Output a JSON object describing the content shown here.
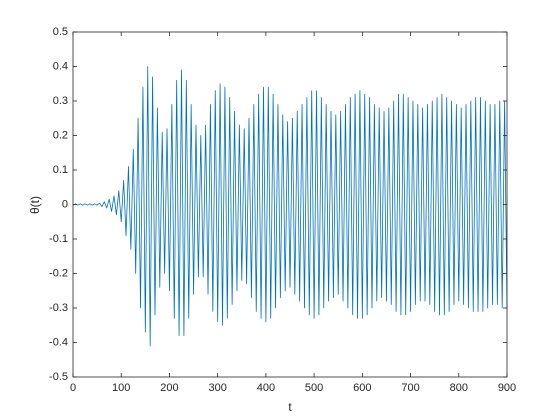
{
  "chart_data": {
    "type": "line",
    "xlabel": "t",
    "ylabel": "θ(t)",
    "color": "#0072bd",
    "xlim": [
      0,
      900
    ],
    "ylim": [
      -0.5,
      0.5
    ],
    "xticks": [
      0,
      100,
      200,
      300,
      400,
      500,
      600,
      700,
      800,
      900
    ],
    "yticks": [
      -0.5,
      -0.4,
      -0.3,
      -0.2,
      -0.1,
      0,
      0.1,
      0.2,
      0.3,
      0.4,
      0.5
    ],
    "box": true,
    "x": [
      0,
      5,
      10,
      15,
      20,
      25,
      30,
      35,
      40,
      45,
      50,
      55,
      60,
      65,
      70,
      75,
      80,
      85,
      90,
      95,
      100,
      105,
      110,
      115,
      120,
      125,
      130,
      135,
      140,
      145,
      150,
      155,
      160,
      165,
      170,
      175,
      180,
      185,
      190,
      195,
      200,
      205,
      210,
      215,
      220,
      225,
      230,
      235,
      240,
      245,
      250,
      255,
      260,
      265,
      270,
      275,
      280,
      285,
      290,
      295,
      300,
      305,
      310,
      315,
      320,
      325,
      330,
      335,
      340,
      345,
      350,
      355,
      360,
      365,
      370,
      375,
      380,
      385,
      390,
      395,
      400,
      405,
      410,
      415,
      420,
      425,
      430,
      435,
      440,
      445,
      450,
      455,
      460,
      465,
      470,
      475,
      480,
      485,
      490,
      495,
      500,
      505,
      510,
      515,
      520,
      525,
      530,
      535,
      540,
      545,
      550,
      555,
      560,
      565,
      570,
      575,
      580,
      585,
      590,
      595,
      600,
      605,
      610,
      615,
      620,
      625,
      630,
      635,
      640,
      645,
      650,
      655,
      660,
      665,
      670,
      675,
      680,
      685,
      690,
      695,
      700,
      705,
      710,
      715,
      720,
      725,
      730,
      735,
      740,
      745,
      750,
      755,
      760,
      765,
      770,
      775,
      780,
      785,
      790,
      795,
      800,
      805,
      810,
      815,
      820,
      825,
      830,
      835,
      840,
      845,
      850,
      855,
      860,
      865,
      870,
      875,
      880,
      885,
      890,
      895,
      900
    ],
    "values": [
      -0.002,
      0.002,
      -0.002,
      0.002,
      -0.002,
      0.002,
      -0.002,
      0.002,
      -0.002,
      0.002,
      -0.002,
      0.004,
      -0.006,
      0.008,
      -0.01,
      0.015,
      -0.02,
      0.025,
      -0.03,
      0.04,
      -0.05,
      0.07,
      -0.09,
      0.11,
      -0.13,
      0.16,
      -0.2,
      0.25,
      -0.3,
      0.34,
      -0.37,
      0.4,
      -0.41,
      0.37,
      -0.32,
      0.28,
      -0.24,
      0.21,
      -0.2,
      0.22,
      -0.25,
      0.29,
      -0.33,
      0.36,
      -0.38,
      0.39,
      -0.38,
      0.36,
      -0.33,
      0.29,
      -0.26,
      0.23,
      -0.21,
      0.2,
      -0.21,
      0.23,
      -0.26,
      0.29,
      -0.31,
      0.33,
      -0.34,
      0.35,
      -0.35,
      0.34,
      -0.33,
      0.31,
      -0.29,
      0.27,
      -0.25,
      0.23,
      -0.22,
      0.22,
      -0.23,
      0.25,
      -0.27,
      0.29,
      -0.31,
      0.32,
      -0.33,
      0.34,
      -0.34,
      0.34,
      -0.33,
      0.32,
      -0.3,
      0.29,
      -0.27,
      0.26,
      -0.25,
      0.24,
      -0.24,
      0.25,
      -0.26,
      0.27,
      -0.28,
      0.29,
      -0.3,
      0.31,
      -0.32,
      0.33,
      -0.33,
      0.33,
      -0.32,
      0.31,
      -0.3,
      0.29,
      -0.28,
      0.27,
      -0.27,
      0.26,
      -0.26,
      0.27,
      -0.28,
      0.29,
      -0.3,
      0.31,
      -0.32,
      0.32,
      -0.33,
      0.33,
      -0.33,
      0.32,
      -0.32,
      0.31,
      -0.3,
      0.29,
      -0.28,
      0.28,
      -0.27,
      0.27,
      -0.28,
      0.28,
      -0.29,
      0.3,
      -0.31,
      0.32,
      -0.32,
      0.32,
      -0.32,
      0.31,
      -0.31,
      0.3,
      -0.29,
      0.29,
      -0.28,
      0.28,
      -0.28,
      0.29,
      -0.29,
      0.3,
      -0.31,
      0.31,
      -0.32,
      0.32,
      -0.32,
      0.31,
      -0.31,
      0.3,
      -0.29,
      0.29,
      -0.28,
      0.28,
      -0.29,
      0.29,
      -0.3,
      0.3,
      -0.31,
      0.31,
      -0.31,
      0.31,
      -0.31,
      0.3,
      -0.3,
      0.29,
      -0.29,
      0.29,
      -0.29,
      0.3,
      -0.3,
      0.3,
      -0.3
    ]
  }
}
